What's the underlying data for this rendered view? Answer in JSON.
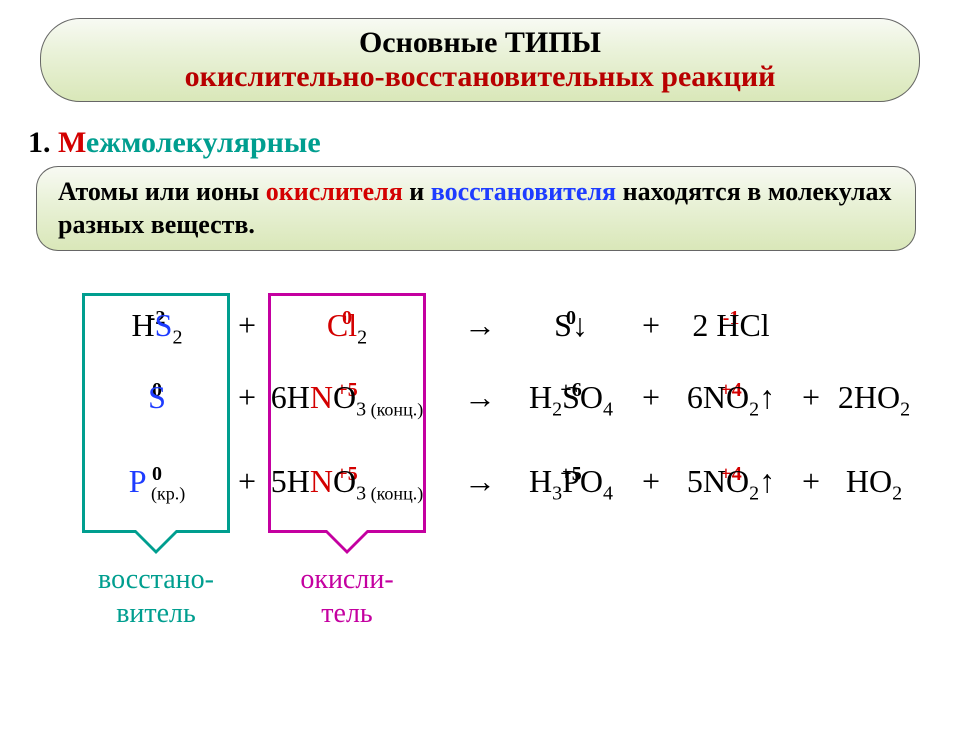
{
  "title": {
    "line1": "Основные ТИПЫ",
    "line2": "окислительно-восстановительных реакций",
    "line2_color": "#b80000"
  },
  "section": {
    "prefix": "1. ",
    "word": "М",
    "rest": "ежмолекулярные",
    "prefix_color": "#000000",
    "word_color": "#d30000",
    "rest_color": "#009e8f"
  },
  "definition": {
    "p1": "Атомы  или ионы ",
    "ox": "окислителя",
    "p2": " и ",
    "rd": "восстановителя",
    "p3": " находятся в молекулах разных веществ.",
    "ox_color": "#d30000",
    "rd_color": "#1e3cff"
  },
  "labels": {
    "reducer": "восстано-\nвитель",
    "oxidizer": "окисли-\nтель"
  },
  "reactions": [
    {
      "r1": {
        "pre": "H",
        "sub": "2",
        "el": "S",
        "ox": "-2",
        "ox_color": "#000000",
        "el_color": "#1e3cff"
      },
      "r2": {
        "pre": "",
        "el": "Cl",
        "sub": "2",
        "ox": "0",
        "ox_color": "#d30000",
        "el_color": "#d30000"
      },
      "p1": {
        "pre": "",
        "el": "S",
        "post": "↓",
        "ox": "0",
        "ox_color": "#000000"
      },
      "p2": {
        "coef": "2 ",
        "pre": "H",
        "el": "Cl",
        "ox": "-1",
        "ox_color": "#d30000"
      },
      "p3": null
    },
    {
      "r1": {
        "pre": "",
        "el": "S",
        "ox": "0",
        "ox_color": "#000000",
        "el_color": "#1e3cff"
      },
      "r2": {
        "coef": "6",
        "pre": "H",
        "el": "N",
        "post": "O",
        "sub": "3",
        "ox": "+5",
        "ox_color": "#d30000",
        "el_color": "#d30000",
        "note": "(конц.)"
      },
      "p1": {
        "pre": "H",
        "sub1": "2",
        "el": "S",
        "post": "O",
        "sub2": "4",
        "ox": "+6",
        "ox_color": "#000000"
      },
      "p2": {
        "coef": "6",
        "el": "N",
        "post": "O",
        "sub": "2",
        "arrow": "↑",
        "ox": "+4",
        "ox_color": "#d30000"
      },
      "p3": {
        "coef": "2",
        "pre": "H",
        "sub": "2",
        "post": "O"
      }
    },
    {
      "r1": {
        "pre": "",
        "el": "P",
        "note": "(кр.)",
        "ox": "0",
        "ox_color": "#000000",
        "el_color": "#1e3cff"
      },
      "r2": {
        "coef": "5",
        "pre": "H",
        "el": "N",
        "post": "O",
        "sub": "3",
        "ox": "+5",
        "ox_color": "#d30000",
        "el_color": "#d30000",
        "note": "(конц.)"
      },
      "p1": {
        "pre": "H",
        "sub1": "3",
        "el": "P",
        "post": "O",
        "sub2": "4",
        "ox": "+5",
        "ox_color": "#000000"
      },
      "p2": {
        "coef": "5",
        "el": "N",
        "post": "O",
        "sub": "2",
        "arrow": "↑",
        "ox": "+4",
        "ox_color": "#d30000"
      },
      "p3": {
        "pre": "H",
        "sub": "2",
        "post": "O"
      }
    }
  ]
}
